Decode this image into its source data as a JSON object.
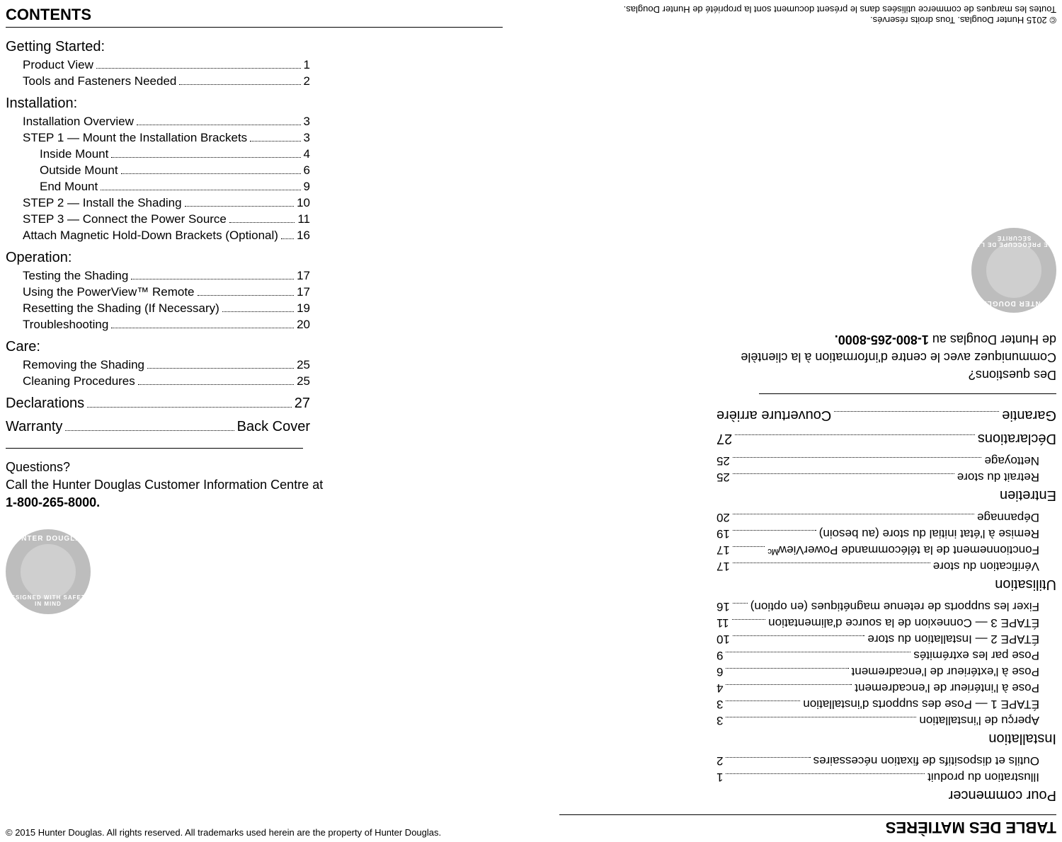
{
  "english": {
    "title": "CONTENTS",
    "sections": [
      {
        "heading": "Getting Started:",
        "entries": [
          {
            "label": "Product View",
            "page": "1",
            "indent": 1
          },
          {
            "label": "Tools and Fasteners Needed",
            "page": "2",
            "indent": 1
          }
        ]
      },
      {
        "heading": "Installation:",
        "entries": [
          {
            "label": "Installation Overview",
            "page": "3",
            "indent": 1
          },
          {
            "label": "STEP 1 — Mount the Installation Brackets",
            "page": "3",
            "indent": 1
          },
          {
            "label": "Inside Mount",
            "page": "4",
            "indent": 2
          },
          {
            "label": "Outside Mount",
            "page": "6",
            "indent": 2
          },
          {
            "label": "End Mount",
            "page": "9",
            "indent": 2
          },
          {
            "label": "STEP 2 — Install the Shading",
            "page": "10",
            "indent": 1
          },
          {
            "label": "STEP 3 — Connect the Power Source",
            "page": "11",
            "indent": 1
          },
          {
            "label": "Attach Magnetic Hold-Down Brackets (Optional)",
            "page": "16",
            "indent": 1
          }
        ]
      },
      {
        "heading": "Operation:",
        "entries": [
          {
            "label": "Testing the Shading",
            "page": "17",
            "indent": 1
          },
          {
            "label": "Using the PowerView™ Remote",
            "page": "17",
            "indent": 1
          },
          {
            "label": "Resetting the Shading (If Necessary)",
            "page": "19",
            "indent": 1
          },
          {
            "label": "Troubleshooting",
            "page": "20",
            "indent": 1
          }
        ]
      },
      {
        "heading": "Care:",
        "entries": [
          {
            "label": "Removing the Shading",
            "page": "25",
            "indent": 1
          },
          {
            "label": "Cleaning Procedures",
            "page": "25",
            "indent": 1
          }
        ]
      }
    ],
    "simple": [
      {
        "label": "Declarations",
        "page": "27"
      },
      {
        "label": "Warranty",
        "page": "Back Cover"
      }
    ],
    "questions_title": "Questions?",
    "questions_body": "Call the Hunter Douglas Customer Information Centre at",
    "questions_phone": "1-800-265-8000.",
    "badge_top": "HUNTER DOUGLAS",
    "badge_bottom": "DESIGNED WITH SAFETY IN MIND",
    "copyright": "© 2015 Hunter Douglas. All rights reserved. All trademarks used herein are the property of Hunter Douglas."
  },
  "french": {
    "title": "TABLE DES MATIÈRES",
    "sections": [
      {
        "heading": "Pour commencer",
        "entries": [
          {
            "label": "Illustration du produit",
            "page": "1",
            "indent": 1
          },
          {
            "label": "Outils et dispositifs de fixation nécessaires",
            "page": "2",
            "indent": 1
          }
        ]
      },
      {
        "heading": "Installation",
        "entries": [
          {
            "label": "Aperçu de l'installation",
            "page": "3",
            "indent": 1
          },
          {
            "label": "ÉTAPE 1 — Pose des supports d'installation",
            "page": "3",
            "indent": 1
          },
          {
            "label": "Pose à l'intérieur de l'encadrement",
            "page": "4",
            "indent": 1
          },
          {
            "label": "Pose à l'extérieur de l'encadrement",
            "page": "6",
            "indent": 1
          },
          {
            "label": "Pose par les extrémités",
            "page": "9",
            "indent": 1
          },
          {
            "label": "ÉTAPE 2 — Installation du store",
            "page": "10",
            "indent": 1
          },
          {
            "label": "ÉTAPE 3 — Connexion de la source d'alimentation",
            "page": "11",
            "indent": 1
          },
          {
            "label": "Fixer les supports de retenue magnétiques (en option)",
            "page": "16",
            "indent": 1
          }
        ]
      },
      {
        "heading": "Utilisation",
        "entries": [
          {
            "label": "Vérification du store",
            "page": "17",
            "indent": 1
          },
          {
            "label": "Fonctionnement de la télécommande PowerViewᴹᶜ",
            "page": "17",
            "indent": 1
          },
          {
            "label": "Remise à l'état initial du store (au besoin)",
            "page": "19",
            "indent": 1
          },
          {
            "label": "Dépannage",
            "page": "20",
            "indent": 1
          }
        ]
      },
      {
        "heading": "Entretien",
        "entries": [
          {
            "label": "Retrait du store",
            "page": "25",
            "indent": 1
          },
          {
            "label": "Nettoyage",
            "page": "25",
            "indent": 1
          }
        ]
      }
    ],
    "simple": [
      {
        "label": "Déclarations",
        "page": "27"
      },
      {
        "label": "Garantie",
        "page": "Couverture arrière"
      }
    ],
    "questions_title": "Des questions?",
    "questions_body": "Communiquez avec le centre d'information à la clientèle",
    "questions_body2": "de Hunter Douglas au ",
    "questions_phone": "1-800-265-8000.",
    "badge_top": "HUNTER DOUGLAS",
    "badge_bottom": "SE PRÉOCCUPE DE LA SÉCURITÉ",
    "copyright_line1": "© 2015 Hunter Douglas. Tous droits réservés.",
    "copyright_line2": "Toutes les marques de commerce utilisées dans le présent document sont la propriété de Hunter Douglas."
  },
  "style": {
    "title_fontsize": 22,
    "section_fontsize": 20,
    "entry_fontsize": 17,
    "text_color": "#000000",
    "bg_color": "#ffffff",
    "badge_bg": "#bdbdbd",
    "badge_inner": "#cfcfcf",
    "dot_color": "#000000"
  }
}
